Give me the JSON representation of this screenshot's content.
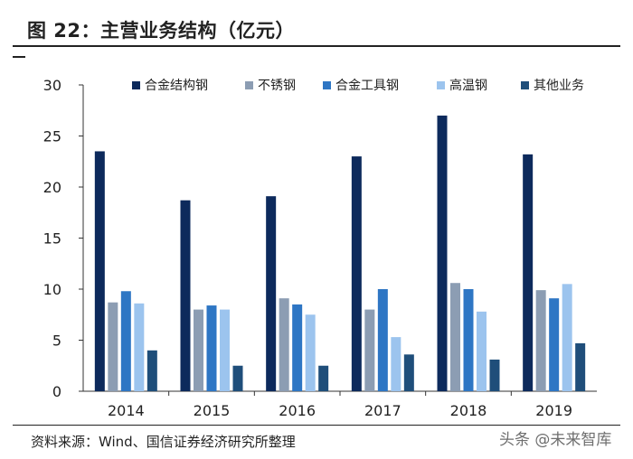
{
  "title": "图 22：主营业务结构（亿元）",
  "source_note": "资料来源：Wind、国信证券经济研究所整理",
  "watermark": "头条 @未来智库",
  "chart_data": {
    "type": "bar",
    "title": "图 22：主营业务结构（亿元）",
    "categories": [
      "2014",
      "2015",
      "2016",
      "2017",
      "2018",
      "2019"
    ],
    "ylim": [
      0,
      30
    ],
    "yticks": [
      0,
      5,
      10,
      15,
      20,
      25,
      30
    ],
    "legend_position": "top",
    "grid": false,
    "series": [
      {
        "name": "合金结构钢",
        "color": "#0d2a5c",
        "values": [
          23.5,
          18.7,
          19.1,
          23.0,
          27.0,
          23.2
        ]
      },
      {
        "name": "不锈钢",
        "color": "#8c9db3",
        "values": [
          8.7,
          8.0,
          9.1,
          8.0,
          10.6,
          9.9
        ]
      },
      {
        "name": "合金工具钢",
        "color": "#2e76c4",
        "values": [
          9.8,
          8.4,
          8.5,
          10.0,
          10.0,
          9.1
        ]
      },
      {
        "name": "高温钢",
        "color": "#9cc4ee",
        "values": [
          8.6,
          8.0,
          7.5,
          5.3,
          7.8,
          10.5
        ]
      },
      {
        "name": "其他业务",
        "color": "#1f4e7a",
        "values": [
          4.0,
          2.5,
          2.5,
          3.6,
          3.1,
          4.7
        ]
      }
    ]
  }
}
